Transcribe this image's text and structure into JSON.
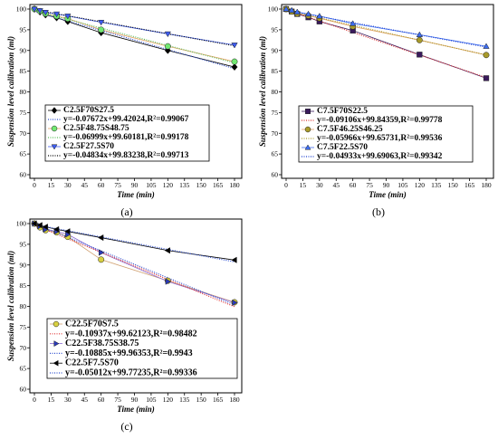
{
  "chart_data": [
    {
      "panel_label": "(a)",
      "type": "line",
      "xlabel": "Time (min)",
      "ylabel": "Suspension level calibration (ml)",
      "xlim": [
        0,
        180
      ],
      "ylim": [
        60,
        100
      ],
      "xticks": [
        0,
        15,
        30,
        45,
        60,
        75,
        90,
        105,
        120,
        135,
        150,
        165,
        180
      ],
      "yticks": [
        60,
        65,
        70,
        75,
        80,
        85,
        90,
        95,
        100
      ],
      "grid": false,
      "legend_position": "bottom-center",
      "x": [
        0,
        5,
        10,
        20,
        30,
        60,
        120,
        180
      ],
      "series": [
        {
          "name": "C2.5F70S27.5",
          "marker": "diamond",
          "marker_color": "#000000",
          "line_color": "#000000",
          "values": [
            100,
            99.3,
            98.6,
            97.9,
            97.0,
            94.3,
            90.0,
            86.0
          ],
          "fit": {
            "equation": "y=-0.07672x+99.42024,R²=0.99067",
            "slope": -0.07672,
            "intercept": 99.42024,
            "color": "#2f4fcf"
          }
        },
        {
          "name": "C2.5F48.75S48.75",
          "marker": "circle",
          "marker_color": "#72e872",
          "line_color": "#e2a060",
          "values": [
            100,
            99.5,
            98.9,
            98.3,
            97.7,
            95.0,
            91.0,
            87.3
          ],
          "fit": {
            "equation": "y=-0.06999x+99.60181,R²=0.99178",
            "slope": -0.06999,
            "intercept": 99.60181,
            "color": "#5cbf5c"
          }
        },
        {
          "name": "C2.5F27.5S70",
          "marker": "triangle-down",
          "marker_color": "#3d5cf2",
          "line_color": "#3d5cf2",
          "values": [
            100,
            99.6,
            99.2,
            98.8,
            98.3,
            96.8,
            94.0,
            91.3
          ],
          "fit": {
            "equation": "y=-0.04834x+99.83238,R²=0.99713",
            "slope": -0.04834,
            "intercept": 99.83238,
            "color": "#000000"
          }
        }
      ]
    },
    {
      "panel_label": "(b)",
      "type": "line",
      "xlabel": "Time (min)",
      "ylabel": "Suspension level calibration (ml)",
      "xlim": [
        0,
        180
      ],
      "ylim": [
        60,
        100
      ],
      "xticks": [
        0,
        15,
        30,
        45,
        60,
        75,
        90,
        105,
        120,
        135,
        150,
        165,
        180
      ],
      "yticks": [
        60,
        65,
        70,
        75,
        80,
        85,
        90,
        95,
        100
      ],
      "grid": false,
      "legend_position": "bottom-center",
      "x": [
        0,
        5,
        10,
        20,
        30,
        60,
        120,
        180
      ],
      "series": [
        {
          "name": "C7.5F70S22.5",
          "marker": "square",
          "marker_color": "#3a1a5c",
          "line_color": "#3a1a5c",
          "values": [
            100,
            99.4,
            98.8,
            98.0,
            97.0,
            94.8,
            89.0,
            83.3
          ],
          "fit": {
            "equation": "y=-0.09106x+99.84359,R²=0.99778",
            "slope": -0.09106,
            "intercept": 99.84359,
            "color": "#d83030"
          }
        },
        {
          "name": "C7.5F46.25S46.25",
          "marker": "circle",
          "marker_color": "#a89a2a",
          "line_color": "#e2a060",
          "values": [
            100,
            99.4,
            98.9,
            98.4,
            97.8,
            95.8,
            92.5,
            88.9
          ],
          "fit": {
            "equation": "y=-0.05966x+99.65731,R²=0.99536",
            "slope": -0.05966,
            "intercept": 99.65731,
            "color": "#a89a2a"
          }
        },
        {
          "name": "C7.5F22.5S70",
          "marker": "triangle-up",
          "marker_color": "#3d6df2",
          "line_color": "#3d6df2",
          "values": [
            100,
            99.7,
            99.3,
            98.8,
            98.3,
            96.5,
            93.8,
            91.0
          ],
          "fit": {
            "equation": "y=-0.04933x+99.69063,R²=0.99342",
            "slope": -0.04933,
            "intercept": 99.69063,
            "color": "#1a3fd0"
          }
        }
      ]
    },
    {
      "panel_label": "(c)",
      "type": "line",
      "xlabel": "Time (min)",
      "ylabel": "Suspension level calibration (ml)",
      "xlim": [
        0,
        180
      ],
      "ylim": [
        60,
        100
      ],
      "xticks": [
        0,
        15,
        30,
        45,
        60,
        75,
        90,
        105,
        120,
        135,
        150,
        165,
        180
      ],
      "yticks": [
        60,
        65,
        70,
        75,
        80,
        85,
        90,
        95,
        100
      ],
      "grid": false,
      "legend_position": "bottom-center",
      "x": [
        0,
        5,
        10,
        20,
        30,
        60,
        120,
        180
      ],
      "series": [
        {
          "name": "C22.5F70S7.5",
          "marker": "circle",
          "marker_color": "#d8d040",
          "line_color": "#d0a070",
          "values": [
            100,
            99.1,
            98.4,
            97.9,
            96.8,
            91.3,
            86.2,
            81.0
          ],
          "fit": {
            "equation": "y=-0.10937x+99.62123,R²=0.98482",
            "slope": -0.10937,
            "intercept": 99.62123,
            "color": "#e03030"
          }
        },
        {
          "name": "C22.5F38.75S38.75",
          "marker": "triangle-right",
          "marker_color": "#2a3ab8",
          "line_color": "#8a6ad0",
          "values": [
            100,
            99.4,
            98.6,
            98.1,
            97.4,
            93.0,
            86.0,
            80.9
          ],
          "fit": {
            "equation": "y=-0.10885x+99.96353,R²=0.9943",
            "slope": -0.10885,
            "intercept": 99.96353,
            "color": "#2f4fcf"
          }
        },
        {
          "name": "C22.5F7.5S70",
          "marker": "triangle-left",
          "marker_color": "#000000",
          "line_color": "#000000",
          "values": [
            100,
            99.6,
            99.2,
            98.6,
            98.1,
            96.6,
            93.5,
            91.2
          ],
          "fit": {
            "equation": "y=-0.05012x+99.77235,R²=0.99336",
            "slope": -0.05012,
            "intercept": 99.77235,
            "color": "#2f4fcf"
          }
        }
      ]
    }
  ]
}
